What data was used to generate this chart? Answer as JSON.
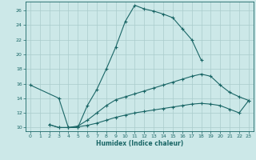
{
  "xlabel": "Humidex (Indice chaleur)",
  "background_color": "#cce8e8",
  "grid_color": "#aacccc",
  "line_color": "#1a6666",
  "line1_x": [
    0,
    3,
    4,
    5,
    6,
    7,
    8,
    9,
    10,
    11,
    12,
    13,
    14,
    15,
    16,
    17,
    18
  ],
  "line1_y": [
    15.8,
    14.0,
    10.0,
    10.0,
    13.0,
    15.2,
    18.0,
    21.0,
    24.5,
    26.7,
    26.2,
    25.9,
    25.5,
    25.0,
    23.5,
    22.0,
    19.2
  ],
  "line2_x": [
    2,
    3,
    4,
    5,
    6,
    7,
    8,
    9,
    10,
    11,
    12,
    13,
    14,
    15,
    16,
    17,
    18,
    19,
    20,
    21,
    22,
    23
  ],
  "line2_y": [
    10.4,
    10.0,
    10.0,
    10.2,
    11.0,
    12.0,
    13.0,
    13.8,
    14.2,
    14.6,
    15.0,
    15.4,
    15.8,
    16.2,
    16.6,
    17.0,
    17.3,
    17.0,
    15.8,
    14.8,
    14.2,
    13.7
  ],
  "line3_x": [
    2,
    3,
    4,
    5,
    6,
    7,
    8,
    9,
    10,
    11,
    12,
    13,
    14,
    15,
    16,
    17,
    18,
    19,
    20,
    21,
    22,
    23
  ],
  "line3_y": [
    10.4,
    10.0,
    10.0,
    10.1,
    10.3,
    10.6,
    11.0,
    11.4,
    11.7,
    12.0,
    12.2,
    12.4,
    12.6,
    12.8,
    13.0,
    13.2,
    13.3,
    13.2,
    13.0,
    12.5,
    12.0,
    13.7
  ],
  "xlim": [
    -0.5,
    23.5
  ],
  "ylim": [
    9.5,
    27.2
  ],
  "yticks": [
    10,
    12,
    14,
    16,
    18,
    20,
    22,
    24,
    26
  ],
  "xticks": [
    0,
    1,
    2,
    3,
    4,
    5,
    6,
    7,
    8,
    9,
    10,
    11,
    12,
    13,
    14,
    15,
    16,
    17,
    18,
    19,
    20,
    21,
    22,
    23
  ]
}
